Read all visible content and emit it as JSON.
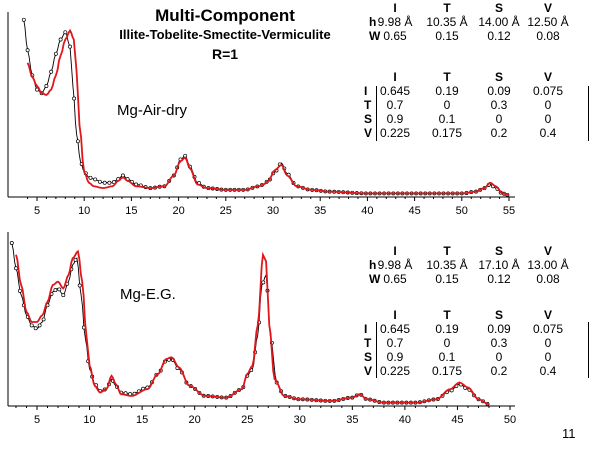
{
  "title": {
    "line1": "Multi-Component",
    "line2": "Illite-Tobelite-Smectite-Vermiculite",
    "line3": "R=1"
  },
  "page_number": "11",
  "colors": {
    "observed": "#000000",
    "calculated": "#e0161b",
    "axis": "#000000"
  },
  "panels": [
    {
      "sample": "Mg-Air-dry",
      "h_table": {
        "headers": [
          "I",
          "T",
          "S",
          "V"
        ],
        "rows": [
          {
            "label": "h",
            "values": [
              "9.98 Å",
              "10.35 Å",
              "14.00 Å",
              "12.50 Å"
            ]
          },
          {
            "label": "W",
            "values": [
              "0.65",
              "0.15",
              "0.12",
              "0.08"
            ]
          }
        ]
      },
      "p_table": {
        "headers": [
          "I",
          "T",
          "S",
          "V"
        ],
        "rows": [
          {
            "label": "I",
            "values": [
              "0.645",
              "0.19",
              "0.09",
              "0.075"
            ]
          },
          {
            "label": "T",
            "values": [
              "0.7",
              "0",
              "0.3",
              "0"
            ]
          },
          {
            "label": "S",
            "values": [
              "0.9",
              "0.1",
              "0",
              "0"
            ]
          },
          {
            "label": "V",
            "values": [
              "0.225",
              "0.175",
              "0.2",
              "0.4"
            ]
          }
        ]
      }
    },
    {
      "sample": "Mg-E.G.",
      "h_table": {
        "headers": [
          "I",
          "T",
          "S",
          "V"
        ],
        "rows": [
          {
            "label": "h",
            "values": [
              "9.98 Å",
              "10.35 Å",
              "17.10 Å",
              "13.00 Å"
            ]
          },
          {
            "label": "W",
            "values": [
              "0.65",
              "0.15",
              "0.12",
              "0.08"
            ]
          }
        ]
      },
      "p_table": {
        "headers": [
          "I",
          "T",
          "S",
          "V"
        ],
        "rows": [
          {
            "label": "I",
            "values": [
              "0.645",
              "0.19",
              "0.09",
              "0.075"
            ]
          },
          {
            "label": "T",
            "values": [
              "0.7",
              "0",
              "0.3",
              "0"
            ]
          },
          {
            "label": "S",
            "values": [
              "0.9",
              "0.1",
              "0",
              "0"
            ]
          },
          {
            "label": "V",
            "values": [
              "0.225",
              "0.175",
              "0.2",
              "0.4"
            ]
          }
        ]
      }
    }
  ],
  "chart_data": [
    {
      "type": "line",
      "title": "",
      "xlabel": "",
      "ylabel": "",
      "xlim": [
        3.5,
        55.5
      ],
      "ylim": [
        0,
        100
      ],
      "x_ticks": [
        5,
        10,
        15,
        20,
        25,
        30,
        35,
        40,
        45,
        50,
        55
      ],
      "grid": false,
      "series": [
        {
          "role": "observed",
          "markers": "open circles",
          "x": [
            3.6,
            4.0,
            4.5,
            5.0,
            5.5,
            6.0,
            6.5,
            7.0,
            7.5,
            8.0,
            8.5,
            8.8,
            9.2,
            9.6,
            10.0,
            10.5,
            11.0,
            12.0,
            13.0,
            13.6,
            14.1,
            14.6,
            15.5,
            17.0,
            18.5,
            19.5,
            20.2,
            20.7,
            21.2,
            22.0,
            23.0,
            25.0,
            27.0,
            28.5,
            29.0,
            29.5,
            30.2,
            30.9,
            31.5,
            32.5,
            34.0,
            36.0,
            40.0,
            45.0,
            50.0,
            51.5,
            52.4,
            53.0,
            53.6,
            54.3,
            55.0
          ],
          "y": [
            99,
            82,
            68,
            60,
            58,
            62,
            70,
            80,
            88,
            92,
            84,
            62,
            35,
            20,
            14,
            11,
            10,
            8,
            8,
            10,
            12,
            10,
            7,
            5,
            6,
            12,
            21,
            23,
            17,
            8,
            5,
            4,
            4,
            6,
            7,
            9,
            14,
            19,
            13,
            6,
            4,
            3,
            2,
            2,
            2,
            3,
            5,
            7,
            5,
            2,
            1
          ]
        },
        {
          "role": "calculated",
          "markers": "none",
          "x": [
            4.0,
            4.5,
            5.0,
            5.5,
            6.0,
            6.5,
            7.0,
            7.5,
            8.0,
            8.5,
            8.9,
            9.2,
            9.5,
            10.0,
            10.5,
            11.0,
            12.0,
            13.0,
            13.6,
            14.1,
            14.6,
            15.5,
            17.0,
            18.5,
            19.5,
            20.2,
            20.7,
            21.2,
            22.0,
            23.0,
            25.0,
            27.0,
            28.5,
            29.0,
            29.5,
            30.2,
            30.9,
            31.5,
            32.5,
            34.0,
            36.0,
            40.0,
            45.0,
            50.0,
            51.5,
            52.4,
            53.0,
            53.6,
            54.3,
            55.0
          ],
          "y": [
            75,
            67,
            62,
            58,
            57,
            60,
            68,
            79,
            88,
            93,
            88,
            70,
            40,
            14,
            8,
            6,
            5,
            6,
            9,
            11,
            9,
            6,
            5,
            6,
            12,
            20,
            22,
            16,
            7,
            5,
            4,
            4,
            6,
            7,
            9,
            15,
            18,
            12,
            6,
            4,
            3,
            2,
            2,
            2,
            3,
            5,
            8,
            6,
            2,
            1
          ]
        }
      ]
    },
    {
      "type": "line",
      "title": "",
      "xlabel": "",
      "ylabel": "",
      "xlim": [
        2.5,
        50.5
      ],
      "ylim": [
        0,
        100
      ],
      "x_ticks": [
        5,
        10,
        15,
        20,
        25,
        30,
        35,
        40,
        45,
        50
      ],
      "grid": false,
      "series": [
        {
          "role": "observed",
          "markers": "open circles",
          "x": [
            2.6,
            3.0,
            3.5,
            4.0,
            4.5,
            5.0,
            5.5,
            6.0,
            6.5,
            7.0,
            7.5,
            8.0,
            8.4,
            8.8,
            9.2,
            9.6,
            10.0,
            10.5,
            11.0,
            11.6,
            12.1,
            12.5,
            13.0,
            14.0,
            15.5,
            16.5,
            17.3,
            17.8,
            18.5,
            19.5,
            21.0,
            23.0,
            24.5,
            25.0,
            25.5,
            26.0,
            26.4,
            26.8,
            27.2,
            27.8,
            28.5,
            30.0,
            33.0,
            35.0,
            35.7,
            36.4,
            38.0,
            41.0,
            43.0,
            44.3,
            45.2,
            46.0,
            47.0,
            48.0
          ],
          "y": [
            97,
            82,
            66,
            54,
            48,
            46,
            50,
            60,
            68,
            70,
            66,
            74,
            84,
            88,
            66,
            40,
            22,
            13,
            9,
            10,
            16,
            12,
            8,
            7,
            11,
            19,
            27,
            28,
            22,
            12,
            6,
            5,
            10,
            18,
            22,
            42,
            72,
            78,
            42,
            14,
            6,
            4,
            3,
            5,
            7,
            4,
            2,
            2,
            4,
            9,
            13,
            10,
            4,
            1
          ]
        },
        {
          "role": "calculated",
          "markers": "none",
          "x": [
            3.0,
            3.5,
            4.0,
            4.5,
            5.0,
            5.5,
            6.0,
            6.5,
            7.0,
            7.5,
            8.0,
            8.4,
            8.9,
            9.3,
            9.7,
            10.0,
            10.5,
            11.0,
            11.6,
            12.1,
            12.5,
            13.0,
            14.0,
            15.5,
            16.5,
            17.3,
            17.8,
            18.5,
            19.5,
            21.0,
            23.0,
            24.5,
            25.0,
            25.5,
            26.0,
            26.5,
            26.8,
            27.1,
            27.6,
            28.5,
            30.0,
            33.0,
            35.0,
            35.7,
            36.4,
            38.0,
            41.0,
            43.0,
            44.3,
            45.2,
            46.0,
            47.0,
            48.0
          ],
          "y": [
            90,
            72,
            56,
            50,
            50,
            54,
            62,
            72,
            74,
            70,
            78,
            88,
            92,
            74,
            42,
            24,
            12,
            8,
            10,
            18,
            13,
            7,
            6,
            10,
            19,
            28,
            29,
            23,
            12,
            6,
            5,
            10,
            19,
            24,
            48,
            90,
            86,
            48,
            16,
            6,
            4,
            3,
            5,
            7,
            4,
            2,
            2,
            4,
            10,
            14,
            11,
            4,
            1
          ]
        }
      ]
    }
  ]
}
